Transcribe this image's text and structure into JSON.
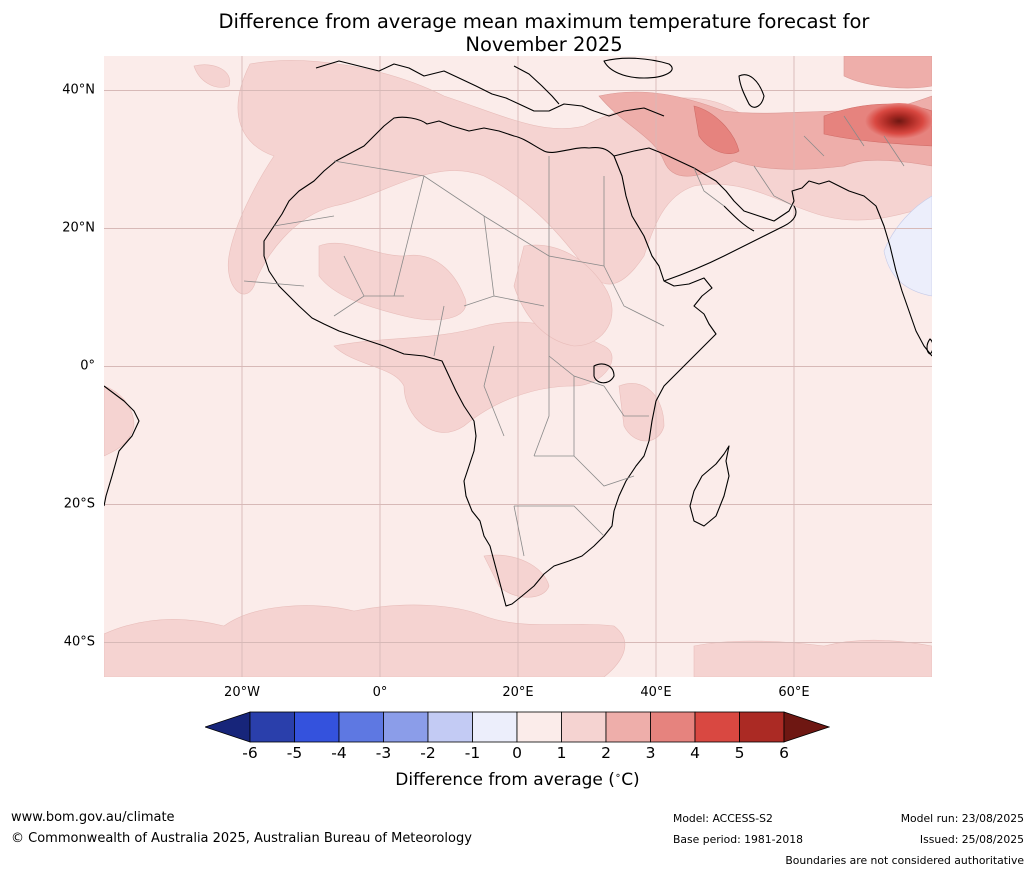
{
  "title": {
    "line1": "Difference from average mean maximum temperature forecast for",
    "line2": "November 2025"
  },
  "map": {
    "region": "Africa",
    "lat_labels": [
      "40°N",
      "20°N",
      "0°",
      "20°S",
      "40°S"
    ],
    "lon_labels": [
      "20°W",
      "0°",
      "20°E",
      "40°E",
      "60°E"
    ]
  },
  "colorbar": {
    "tick_labels": [
      "-6",
      "-5",
      "-4",
      "-3",
      "-2",
      "-1",
      "0",
      "1",
      "2",
      "3",
      "4",
      "5",
      "6"
    ],
    "colors": [
      "#17257a",
      "#2a3fab",
      "#3452dd",
      "#5e78e2",
      "#8b9de9",
      "#c3cbf4",
      "#eceefb",
      "#fbecea",
      "#f5d3d1",
      "#eeaeaa",
      "#e6837e",
      "#d94841",
      "#ab2a24",
      "#6e1712"
    ],
    "label": "Difference from average ($^\\circ$C)",
    "label_text": "Difference from average (",
    "label_unit": "C)"
  },
  "footer": {
    "website": "www.bom.gov.au/climate",
    "copyright": "© Commonwealth of Australia 2025, Australian Bureau of Meteorology",
    "model": "Model: ACCESS-S2",
    "base_period": "Base period: 1981-2018",
    "model_run": "Model run: 23/08/2025",
    "issued": "Issued: 25/08/2025",
    "disclaimer": "Boundaries are not considered authoritative"
  }
}
